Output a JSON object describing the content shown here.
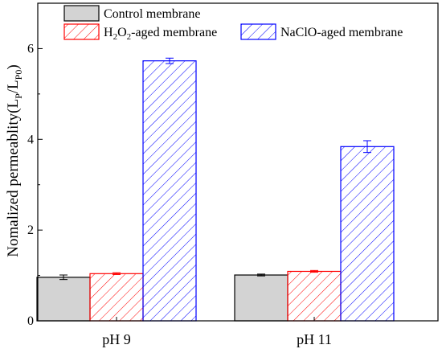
{
  "chart_data": {
    "type": "bar",
    "categories": [
      "pH 9",
      "pH 11"
    ],
    "series": [
      {
        "name": "Control membrane",
        "values": [
          0.96,
          1.01
        ],
        "errors": [
          0.05,
          0.02
        ],
        "color": "#000000",
        "fill": "#d3d3d3",
        "pattern": "solid"
      },
      {
        "name": "H₂O₂-aged membrane",
        "name_parts": {
          "a": "H",
          "b": "2",
          "c": "O",
          "d": "2",
          "e": "-aged membrane"
        },
        "values": [
          1.04,
          1.09
        ],
        "errors": [
          0.02,
          0.02
        ],
        "color": "#ff0000",
        "fill": "#ffffff",
        "pattern": "hatch"
      },
      {
        "name": "NaClO-aged membrane",
        "values": [
          5.73,
          3.84
        ],
        "errors": [
          0.06,
          0.13
        ],
        "color": "#0000ff",
        "fill": "#ffffff",
        "pattern": "hatch"
      }
    ],
    "xlabel": "",
    "ylabel": "Nomalized permeablity(L",
    "ylabel_parts": {
      "a": "Nomalized permeablity(L",
      "b": "P",
      "c": "/L",
      "d": "P0",
      "e": ")"
    },
    "ylim": [
      0,
      7
    ],
    "yticks": [
      "0",
      "2",
      "4",
      "6"
    ],
    "grid": false,
    "legend_position": "top"
  }
}
